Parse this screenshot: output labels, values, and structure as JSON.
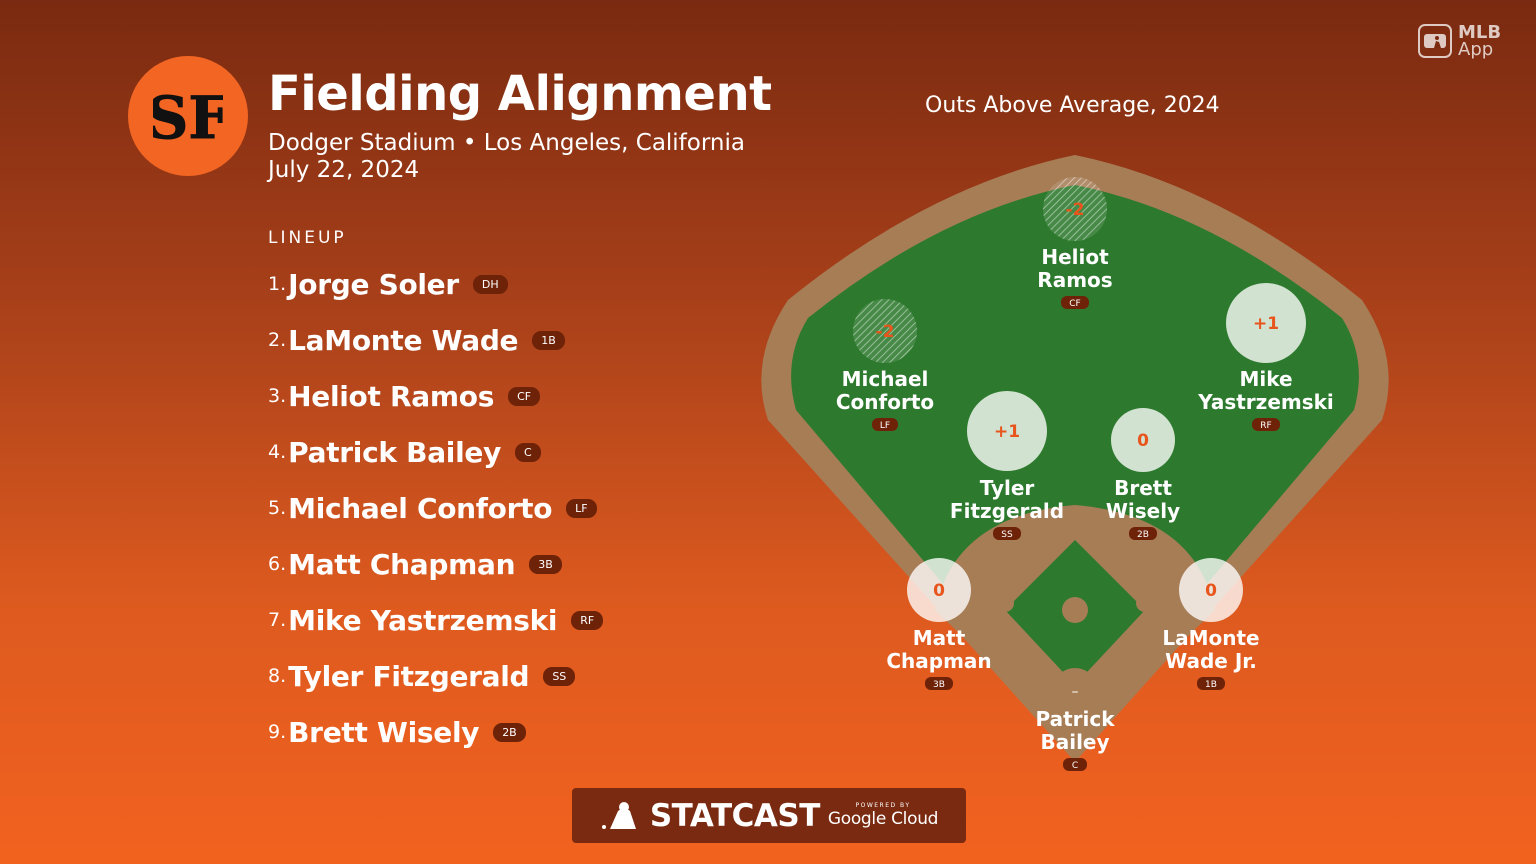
{
  "header": {
    "title": "Fielding Alignment",
    "subtitle": "Dodger Stadium • Los Angeles, California",
    "date": "July 22, 2024",
    "team_logo_text": "SF"
  },
  "lineup": {
    "heading": "LINEUP",
    "players": [
      {
        "order": "1.",
        "name": "Jorge Soler",
        "pos": "DH"
      },
      {
        "order": "2.",
        "name": "LaMonte Wade",
        "pos": "1B"
      },
      {
        "order": "3.",
        "name": "Heliot Ramos",
        "pos": "CF"
      },
      {
        "order": "4.",
        "name": "Patrick Bailey",
        "pos": "C"
      },
      {
        "order": "5.",
        "name": "Michael Conforto",
        "pos": "LF"
      },
      {
        "order": "6.",
        "name": "Matt Chapman",
        "pos": "3B"
      },
      {
        "order": "7.",
        "name": "Mike Yastrzemski",
        "pos": "RF"
      },
      {
        "order": "8.",
        "name": "Tyler Fitzgerald",
        "pos": "SS"
      },
      {
        "order": "9.",
        "name": "Brett Wisely",
        "pos": "2B"
      }
    ]
  },
  "field": {
    "title": "Outs Above Average, 2024",
    "fielders": {
      "cf": {
        "line1": "Heliot",
        "line2": "Ramos",
        "pos": "CF",
        "oaa": "-2"
      },
      "lf": {
        "line1": "Michael",
        "line2": "Conforto",
        "pos": "LF",
        "oaa": "-2"
      },
      "rf": {
        "line1": "Mike",
        "line2": "Yastrzemski",
        "pos": "RF",
        "oaa": "+1"
      },
      "ss": {
        "line1": "Tyler",
        "line2": "Fitzgerald",
        "pos": "SS",
        "oaa": "+1"
      },
      "2b": {
        "line1": "Brett",
        "line2": "Wisely",
        "pos": "2B",
        "oaa": "0"
      },
      "3b": {
        "line1": "Matt",
        "line2": "Chapman",
        "pos": "3B",
        "oaa": "0"
      },
      "1b": {
        "line1": "LaMonte",
        "line2": "Wade Jr.",
        "pos": "1B",
        "oaa": "0"
      },
      "c": {
        "line1": "Patrick",
        "line2": "Bailey",
        "pos": "C",
        "oaa": "–"
      }
    }
  },
  "branding": {
    "mlb_app_line1": "MLB",
    "mlb_app_line2": "App",
    "statcast": "STATCAST",
    "powered_by": "POWERED BY",
    "google_cloud": "Google Cloud"
  },
  "colors": {
    "background_top": "#7a2a10",
    "background_bottom": "#f2621f",
    "logo_orange": "#f26522",
    "grass": "#2d7a2e",
    "dirt": "#a77d56",
    "badge": "#6e2208"
  }
}
